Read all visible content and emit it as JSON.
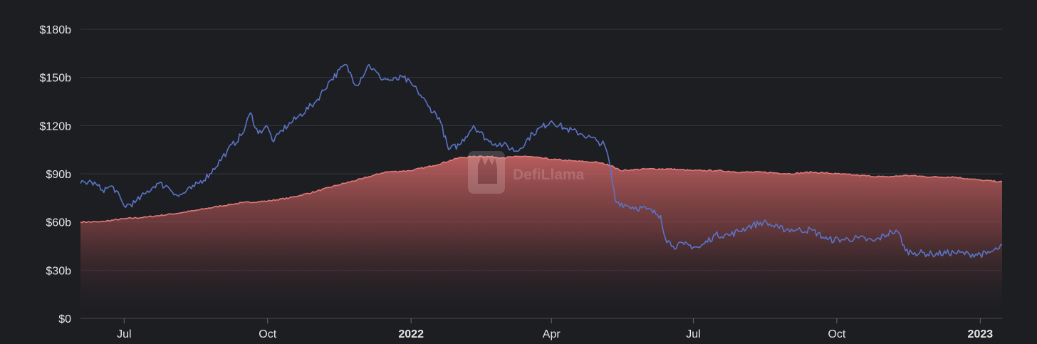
{
  "chart_data": {
    "type": "area",
    "y_axis": {
      "ticks": [
        "$0",
        "$30b",
        "$60b",
        "$90b",
        "$120b",
        "$150b",
        "$180b"
      ],
      "tick_values": [
        0,
        30,
        60,
        90,
        120,
        150,
        180
      ],
      "unit": "USD billions",
      "ylim": [
        0,
        180
      ],
      "grid": true
    },
    "x_axis": {
      "xlim": [
        "2021-06-03",
        "2023-01-15"
      ],
      "ticks": [
        {
          "label": "Jul",
          "date": "2021-07-01",
          "bold": false
        },
        {
          "label": "Oct",
          "date": "2021-10-01",
          "bold": false
        },
        {
          "label": "2022",
          "date": "2022-01-01",
          "bold": true
        },
        {
          "label": "Apr",
          "date": "2022-04-01",
          "bold": false
        },
        {
          "label": "Jul",
          "date": "2022-07-01",
          "bold": false
        },
        {
          "label": "Oct",
          "date": "2022-10-01",
          "bold": false
        },
        {
          "label": "2023",
          "date": "2023-01-01",
          "bold": true
        }
      ]
    },
    "series": [
      {
        "style": "area",
        "color": "#e07a7a",
        "points": [
          [
            "2021-06-03",
            60
          ],
          [
            "2021-06-15",
            60
          ],
          [
            "2021-07-01",
            62
          ],
          [
            "2021-07-15",
            63
          ],
          [
            "2021-08-01",
            65
          ],
          [
            "2021-08-15",
            67
          ],
          [
            "2021-09-01",
            70
          ],
          [
            "2021-09-15",
            72
          ],
          [
            "2021-10-01",
            73
          ],
          [
            "2021-10-15",
            75
          ],
          [
            "2021-11-01",
            79
          ],
          [
            "2021-11-15",
            83
          ],
          [
            "2021-12-01",
            87
          ],
          [
            "2021-12-15",
            91
          ],
          [
            "2022-01-01",
            92
          ],
          [
            "2022-01-15",
            95
          ],
          [
            "2022-02-01",
            100
          ],
          [
            "2022-02-15",
            101
          ],
          [
            "2022-03-01",
            100
          ],
          [
            "2022-03-15",
            101
          ],
          [
            "2022-04-01",
            99
          ],
          [
            "2022-04-15",
            98
          ],
          [
            "2022-05-01",
            97
          ],
          [
            "2022-05-10",
            95
          ],
          [
            "2022-05-15",
            92
          ],
          [
            "2022-06-01",
            93
          ],
          [
            "2022-06-15",
            93
          ],
          [
            "2022-07-01",
            92
          ],
          [
            "2022-07-15",
            92
          ],
          [
            "2022-08-01",
            91
          ],
          [
            "2022-08-15",
            91
          ],
          [
            "2022-09-01",
            90
          ],
          [
            "2022-09-15",
            91
          ],
          [
            "2022-10-01",
            90
          ],
          [
            "2022-10-15",
            89
          ],
          [
            "2022-11-01",
            88
          ],
          [
            "2022-11-15",
            89
          ],
          [
            "2022-12-01",
            88
          ],
          [
            "2022-12-15",
            88
          ],
          [
            "2023-01-01",
            86
          ],
          [
            "2023-01-15",
            85
          ]
        ]
      },
      {
        "style": "line",
        "color": "#5b74c9",
        "points": [
          [
            "2021-06-03",
            84
          ],
          [
            "2021-06-10",
            85
          ],
          [
            "2021-06-17",
            80
          ],
          [
            "2021-06-24",
            82
          ],
          [
            "2021-07-01",
            70
          ],
          [
            "2021-07-08",
            72
          ],
          [
            "2021-07-15",
            78
          ],
          [
            "2021-07-22",
            84
          ],
          [
            "2021-07-29",
            82
          ],
          [
            "2021-08-05",
            76
          ],
          [
            "2021-08-15",
            82
          ],
          [
            "2021-08-25",
            90
          ],
          [
            "2021-09-05",
            104
          ],
          [
            "2021-09-15",
            115
          ],
          [
            "2021-09-20",
            128
          ],
          [
            "2021-09-25",
            115
          ],
          [
            "2021-09-30",
            120
          ],
          [
            "2021-10-05",
            110
          ],
          [
            "2021-10-10",
            117
          ],
          [
            "2021-10-20",
            125
          ],
          [
            "2021-11-01",
            135
          ],
          [
            "2021-11-10",
            148
          ],
          [
            "2021-11-20",
            158
          ],
          [
            "2021-11-27",
            145
          ],
          [
            "2021-12-05",
            158
          ],
          [
            "2021-12-12",
            150
          ],
          [
            "2021-12-20",
            148
          ],
          [
            "2021-12-27",
            150
          ],
          [
            "2022-01-05",
            142
          ],
          [
            "2022-01-12",
            132
          ],
          [
            "2022-01-19",
            125
          ],
          [
            "2022-01-25",
            105
          ],
          [
            "2022-02-01",
            108
          ],
          [
            "2022-02-10",
            120
          ],
          [
            "2022-02-20",
            110
          ],
          [
            "2022-03-01",
            108
          ],
          [
            "2022-03-10",
            104
          ],
          [
            "2022-03-20",
            115
          ],
          [
            "2022-04-01",
            123
          ],
          [
            "2022-04-10",
            118
          ],
          [
            "2022-04-20",
            115
          ],
          [
            "2022-05-01",
            110
          ],
          [
            "2022-05-05",
            108
          ],
          [
            "2022-05-08",
            98
          ],
          [
            "2022-05-12",
            73
          ],
          [
            "2022-05-20",
            70
          ],
          [
            "2022-06-01",
            68
          ],
          [
            "2022-06-10",
            64
          ],
          [
            "2022-06-13",
            50
          ],
          [
            "2022-06-18",
            45
          ],
          [
            "2022-06-25",
            46
          ],
          [
            "2022-07-05",
            44
          ],
          [
            "2022-07-15",
            52
          ],
          [
            "2022-07-25",
            52
          ],
          [
            "2022-08-05",
            57
          ],
          [
            "2022-08-15",
            60
          ],
          [
            "2022-08-25",
            56
          ],
          [
            "2022-09-05",
            55
          ],
          [
            "2022-09-15",
            55
          ],
          [
            "2022-09-25",
            49
          ],
          [
            "2022-10-05",
            49
          ],
          [
            "2022-10-15",
            50
          ],
          [
            "2022-10-25",
            48
          ],
          [
            "2022-11-05",
            54
          ],
          [
            "2022-11-10",
            53
          ],
          [
            "2022-11-14",
            42
          ],
          [
            "2022-11-20",
            41
          ],
          [
            "2022-12-01",
            40
          ],
          [
            "2022-12-15",
            41
          ],
          [
            "2022-12-25",
            40
          ],
          [
            "2023-01-05",
            40
          ],
          [
            "2023-01-12",
            43
          ],
          [
            "2023-01-15",
            46
          ]
        ]
      }
    ]
  },
  "watermark": {
    "text": "DefiLlama",
    "icon": "llama-icon"
  }
}
